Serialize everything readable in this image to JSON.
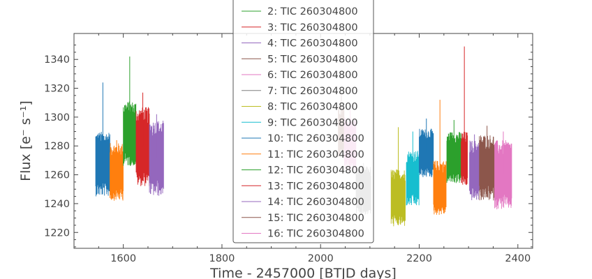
{
  "chart_data": {
    "type": "line",
    "title": "",
    "xlabel": "Time - 2457000 [BTJD days]",
    "ylabel": "Flux [e⁻ s⁻¹]",
    "xlim": [
      1500,
      2430
    ],
    "ylim": [
      1209,
      1358
    ],
    "x_ticks": [
      1600,
      1800,
      2000,
      2200,
      2400
    ],
    "y_ticks": [
      1220,
      1240,
      1260,
      1280,
      1300,
      1320,
      1340
    ],
    "x_tick_labels": [
      "1600",
      "1800",
      "2000",
      "2200",
      "2400"
    ],
    "y_tick_labels": [
      "1220",
      "1240",
      "1260",
      "1280",
      "1300",
      "1320",
      "1340"
    ],
    "grid": false,
    "legend_position": "upper-center",
    "series": [
      {
        "name": "2: TIC 260304800",
        "color": "#2ca02c",
        "x": [
          1600,
          1626
        ],
        "y_range": [
          1266,
          1311
        ],
        "y_max": 1342
      },
      {
        "name": "3: TIC 260304800",
        "color": "#d62728",
        "x": [
          1626,
          1653
        ],
        "y_range": [
          1252,
          1307
        ],
        "y_max": 1317
      },
      {
        "name": "4: TIC 260304800",
        "color": "#9467bd",
        "x": [
          1653,
          1682
        ],
        "y_range": [
          1245,
          1298
        ],
        "y_max": 1302
      },
      {
        "name": "5: TIC 260304800",
        "color": "#8c564b",
        "x": [
          2036,
          2048
        ],
        "y_range": [
          1272,
          1308
        ],
        "y_max": 1316
      },
      {
        "name": "6: TIC 260304800",
        "color": "#e377c2",
        "x": [
          2048,
          2072
        ],
        "y_range": [
          1262,
          1300
        ],
        "y_max": 1308
      },
      {
        "name": "7: TIC 260304800",
        "color": "#7f7f7f",
        "x": [
          2072,
          2102
        ],
        "y_range": [
          1232,
          1266
        ],
        "y_max": 1268
      },
      {
        "name": "8: TIC 260304800",
        "color": "#bcbd22",
        "x": [
          2143,
          2172
        ],
        "y_range": [
          1224,
          1264
        ],
        "y_max": 1293
      },
      {
        "name": "9: TIC 260304800",
        "color": "#17becf",
        "x": [
          2174,
          2200
        ],
        "y_range": [
          1238,
          1277
        ],
        "y_max": 1290
      },
      {
        "name": "10: TIC 260304800",
        "color": "#1f77b4",
        "x": [
          2200,
          2229
        ],
        "y_range": [
          1258,
          1292
        ],
        "y_max": 1299
      },
      {
        "name": "11: TIC 260304800",
        "color": "#ff7f0e",
        "x": [
          2229,
          2255
        ],
        "y_range": [
          1232,
          1270
        ],
        "y_max": 1312
      },
      {
        "name": "12: TIC 260304800",
        "color": "#2ca02c",
        "x": [
          2256,
          2285
        ],
        "y_range": [
          1254,
          1290
        ],
        "y_max": 1298
      },
      {
        "name": "13: TIC 260304800",
        "color": "#d62728",
        "x": [
          2285,
          2298
        ],
        "y_range": [
          1252,
          1290
        ],
        "y_max": 1349
      },
      {
        "name": "14: TIC 260304800",
        "color": "#9467bd",
        "x": [
          2302,
          2322
        ],
        "y_range": [
          1242,
          1284
        ],
        "y_max": 1288
      },
      {
        "name": "15: TIC 260304800",
        "color": "#8c564b",
        "x": [
          2322,
          2353
        ],
        "y_range": [
          1242,
          1288
        ],
        "y_max": 1294
      },
      {
        "name": "16: TIC 260304800",
        "color": "#e377c2",
        "x": [
          2353,
          2388
        ],
        "y_range": [
          1236,
          1284
        ],
        "y_max": 1290
      }
    ],
    "unlisted_series": [
      {
        "color": "#1f77b4",
        "x": [
          1544,
          1573
        ],
        "y_range": [
          1245,
          1290
        ],
        "y_max": 1324
      },
      {
        "color": "#ff7f0e",
        "x": [
          1573,
          1600
        ],
        "y_range": [
          1242,
          1282
        ],
        "y_max": 1284
      }
    ]
  }
}
